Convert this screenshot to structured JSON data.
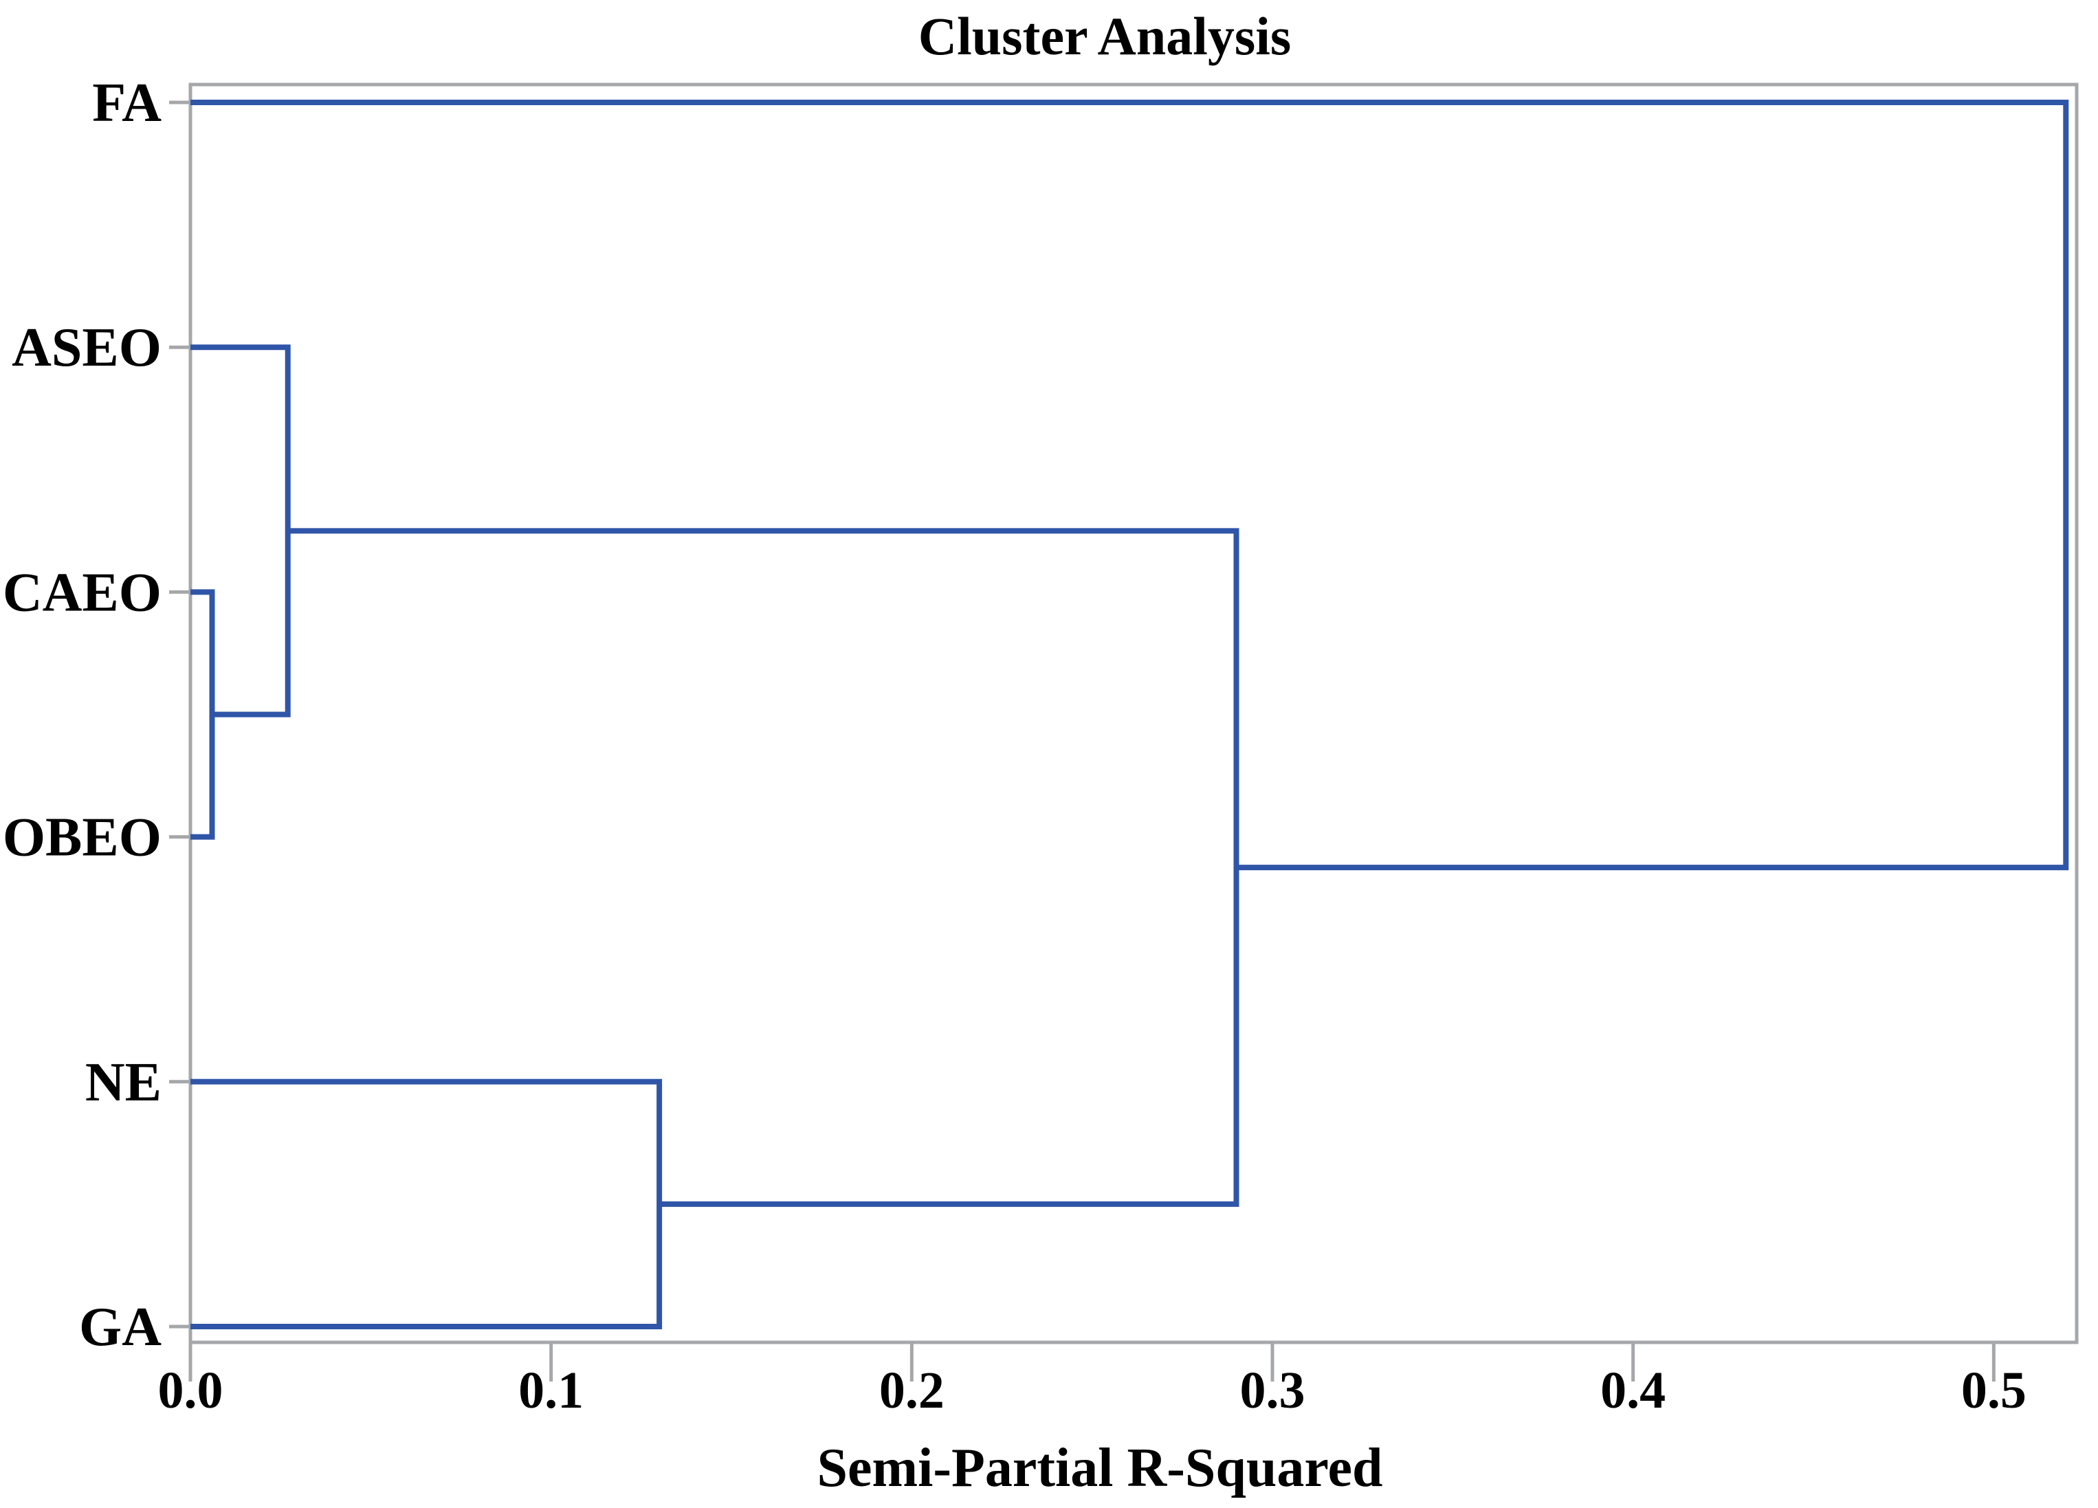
{
  "chart_data": {
    "type": "dendrogram",
    "orientation": "horizontal",
    "title": "Cluster Analysis",
    "xlabel": "Semi-Partial R-Squared",
    "ylabel": "",
    "leaves": [
      "FA",
      "ASEO",
      "CAEO",
      "OBEO",
      "NE",
      "GA"
    ],
    "xlim": [
      0,
      0.523
    ],
    "xticks": [
      0,
      0.1,
      0.2,
      0.3,
      0.4,
      0.5
    ],
    "xtick_labels": [
      "0.0",
      "0.1",
      "0.2",
      "0.3",
      "0.4",
      "0.5"
    ],
    "grid": false,
    "legend": false,
    "merges": [
      {
        "children": [
          "CAEO",
          "OBEO"
        ],
        "height": 0.006
      },
      {
        "children": [
          "ASEO",
          "@0"
        ],
        "height": 0.027
      },
      {
        "children": [
          "NE",
          "GA"
        ],
        "height": 0.13
      },
      {
        "children": [
          "@1",
          "@2"
        ],
        "height": 0.29
      },
      {
        "children": [
          "FA",
          "@3"
        ],
        "height": 0.52
      }
    ],
    "colors": {
      "link": "#2f55a8",
      "frame": "#a5a7aa",
      "text": "#000000",
      "background": "#ffffff"
    }
  }
}
